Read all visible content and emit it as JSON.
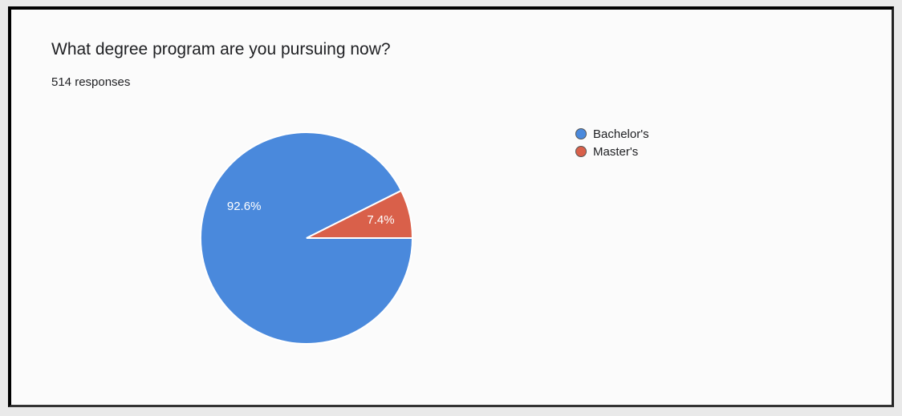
{
  "question": {
    "title": "What degree program are you pursuing now?",
    "responses": "514 responses"
  },
  "chart_data": {
    "type": "pie",
    "title": "What degree program are you pursuing now?",
    "subtitle": "514 responses",
    "categories": [
      "Bachelor's",
      "Master's"
    ],
    "values": [
      92.6,
      7.4
    ],
    "labels": [
      "92.6%",
      "7.4%"
    ],
    "colors": [
      "#4a89dc",
      "#d9604a"
    ],
    "legend_position": "right"
  }
}
